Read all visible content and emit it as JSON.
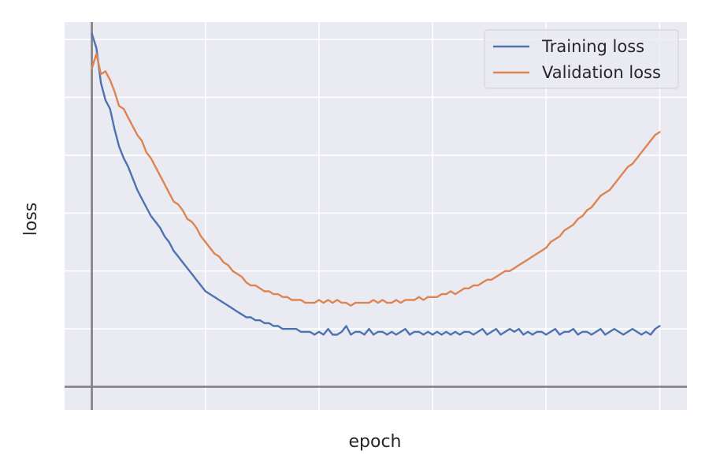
{
  "chart_data": {
    "type": "line",
    "title": "",
    "xlabel": "epoch",
    "ylabel": "loss",
    "xlim": [
      -12,
      262
    ],
    "ylim": [
      -0.08,
      1.26
    ],
    "grid": true,
    "legend": "top-right",
    "tick_labels_shown": false,
    "colors": {
      "background": "#EAEAF2",
      "grid": "#FFFFFF",
      "axis_lines": "#808080",
      "train": "#4C72B0",
      "val": "#DD8452"
    },
    "series": [
      {
        "name": "Training loss",
        "color": "#4C72B0",
        "x": [
          0,
          2,
          4,
          6,
          8,
          10,
          12,
          14,
          16,
          18,
          20,
          22,
          24,
          26,
          28,
          30,
          32,
          34,
          36,
          38,
          40,
          42,
          44,
          46,
          48,
          50,
          52,
          54,
          56,
          58,
          60,
          62,
          64,
          66,
          68,
          70,
          72,
          74,
          76,
          78,
          80,
          82,
          84,
          86,
          88,
          90,
          92,
          94,
          96,
          98,
          100,
          102,
          104,
          106,
          108,
          110,
          112,
          114,
          116,
          118,
          120,
          122,
          124,
          126,
          128,
          130,
          132,
          134,
          136,
          138,
          140,
          142,
          144,
          146,
          148,
          150,
          152,
          154,
          156,
          158,
          160,
          162,
          164,
          166,
          168,
          170,
          172,
          174,
          176,
          178,
          180,
          182,
          184,
          186,
          188,
          190,
          192,
          194,
          196,
          198,
          200,
          202,
          204,
          206,
          208,
          210,
          212,
          214,
          216,
          218,
          220,
          222,
          224,
          226,
          228,
          230,
          232,
          234,
          236,
          238,
          240,
          242,
          244,
          246,
          248,
          250
        ],
        "y": [
          1.22,
          1.17,
          1.05,
          0.99,
          0.96,
          0.89,
          0.83,
          0.79,
          0.76,
          0.72,
          0.68,
          0.65,
          0.62,
          0.59,
          0.57,
          0.55,
          0.52,
          0.5,
          0.47,
          0.45,
          0.43,
          0.41,
          0.39,
          0.37,
          0.35,
          0.33,
          0.32,
          0.31,
          0.3,
          0.29,
          0.28,
          0.27,
          0.26,
          0.25,
          0.24,
          0.24,
          0.23,
          0.23,
          0.22,
          0.22,
          0.21,
          0.21,
          0.2,
          0.2,
          0.2,
          0.2,
          0.19,
          0.19,
          0.19,
          0.18,
          0.19,
          0.18,
          0.2,
          0.18,
          0.18,
          0.19,
          0.21,
          0.18,
          0.19,
          0.19,
          0.18,
          0.2,
          0.18,
          0.19,
          0.19,
          0.18,
          0.19,
          0.18,
          0.19,
          0.2,
          0.18,
          0.19,
          0.19,
          0.18,
          0.19,
          0.18,
          0.19,
          0.18,
          0.19,
          0.18,
          0.19,
          0.18,
          0.19,
          0.19,
          0.18,
          0.19,
          0.2,
          0.18,
          0.19,
          0.2,
          0.18,
          0.19,
          0.2,
          0.19,
          0.2,
          0.18,
          0.19,
          0.18,
          0.19,
          0.19,
          0.18,
          0.19,
          0.2,
          0.18,
          0.19,
          0.19,
          0.2,
          0.18,
          0.19,
          0.19,
          0.18,
          0.19,
          0.2,
          0.18,
          0.19,
          0.2,
          0.19,
          0.18,
          0.19,
          0.2,
          0.19,
          0.18,
          0.19,
          0.18,
          0.2,
          0.21
        ]
      },
      {
        "name": "Validation loss",
        "color": "#DD8452",
        "x": [
          0,
          2,
          4,
          6,
          8,
          10,
          12,
          14,
          16,
          18,
          20,
          22,
          24,
          26,
          28,
          30,
          32,
          34,
          36,
          38,
          40,
          42,
          44,
          46,
          48,
          50,
          52,
          54,
          56,
          58,
          60,
          62,
          64,
          66,
          68,
          70,
          72,
          74,
          76,
          78,
          80,
          82,
          84,
          86,
          88,
          90,
          92,
          94,
          96,
          98,
          100,
          102,
          104,
          106,
          108,
          110,
          112,
          114,
          116,
          118,
          120,
          122,
          124,
          126,
          128,
          130,
          132,
          134,
          136,
          138,
          140,
          142,
          144,
          146,
          148,
          150,
          152,
          154,
          156,
          158,
          160,
          162,
          164,
          166,
          168,
          170,
          172,
          174,
          176,
          178,
          180,
          182,
          184,
          186,
          188,
          190,
          192,
          194,
          196,
          198,
          200,
          202,
          204,
          206,
          208,
          210,
          212,
          214,
          216,
          218,
          220,
          222,
          224,
          226,
          228,
          230,
          232,
          234,
          236,
          238,
          240,
          242,
          244,
          246,
          248,
          250
        ],
        "y": [
          1.1,
          1.15,
          1.08,
          1.09,
          1.06,
          1.02,
          0.97,
          0.96,
          0.93,
          0.9,
          0.87,
          0.85,
          0.81,
          0.79,
          0.76,
          0.73,
          0.7,
          0.67,
          0.64,
          0.63,
          0.61,
          0.58,
          0.57,
          0.55,
          0.52,
          0.5,
          0.48,
          0.46,
          0.45,
          0.43,
          0.42,
          0.4,
          0.39,
          0.38,
          0.36,
          0.35,
          0.35,
          0.34,
          0.33,
          0.33,
          0.32,
          0.32,
          0.31,
          0.31,
          0.3,
          0.3,
          0.3,
          0.29,
          0.29,
          0.29,
          0.3,
          0.29,
          0.3,
          0.29,
          0.3,
          0.29,
          0.29,
          0.28,
          0.29,
          0.29,
          0.29,
          0.29,
          0.3,
          0.29,
          0.3,
          0.29,
          0.29,
          0.3,
          0.29,
          0.3,
          0.3,
          0.3,
          0.31,
          0.3,
          0.31,
          0.31,
          0.31,
          0.32,
          0.32,
          0.33,
          0.32,
          0.33,
          0.34,
          0.34,
          0.35,
          0.35,
          0.36,
          0.37,
          0.37,
          0.38,
          0.39,
          0.4,
          0.4,
          0.41,
          0.42,
          0.43,
          0.44,
          0.45,
          0.46,
          0.47,
          0.48,
          0.5,
          0.51,
          0.52,
          0.54,
          0.55,
          0.56,
          0.58,
          0.59,
          0.61,
          0.62,
          0.64,
          0.66,
          0.67,
          0.68,
          0.7,
          0.72,
          0.74,
          0.76,
          0.77,
          0.79,
          0.81,
          0.83,
          0.85,
          0.87,
          0.88
        ]
      }
    ]
  }
}
